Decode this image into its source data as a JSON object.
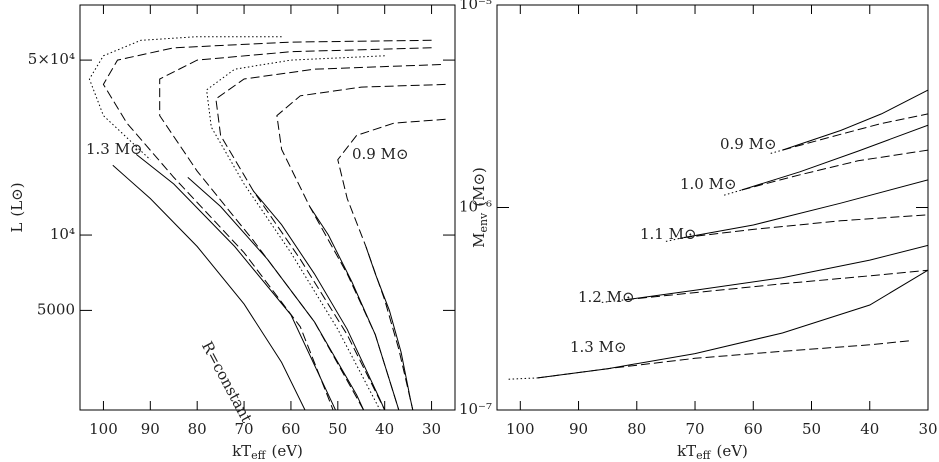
{
  "chart_data": [
    {
      "type": "line",
      "log_y": true,
      "xlim": [
        105,
        25
      ],
      "ylim": [
        2000,
        83000
      ],
      "xticks": [
        100,
        90,
        80,
        70,
        60,
        50,
        40,
        30
      ],
      "yticks": [
        {
          "value": 5000,
          "label": "5000"
        },
        {
          "value": 10000,
          "label": "10⁴"
        },
        {
          "value": 50000,
          "label": "5×10⁴"
        }
      ],
      "xlabel": {
        "text": "kT",
        "sub": "eff",
        "unit": "(eV)"
      },
      "ylabel": {
        "text": "L",
        "unit": "(L⊙)"
      },
      "annotations": [
        "1.3 M⊙",
        "0.9 M⊙",
        "R=constant"
      ],
      "series": [
        {
          "style": "dashed",
          "color": "#000",
          "x": [
            30,
            60,
            85,
            97,
            100,
            95,
            85,
            70,
            58,
            51
          ],
          "y": [
            60000,
            59000,
            56000,
            50000,
            40000,
            28000,
            17000,
            8500,
            4300,
            2000
          ]
        },
        {
          "style": "dotted",
          "color": "#000",
          "x": [
            62,
            80,
            92,
            100,
            103,
            100,
            90
          ],
          "y": [
            62000,
            62000,
            60000,
            52000,
            42000,
            30000,
            20000
          ]
        },
        {
          "style": "dashed",
          "color": "#000",
          "x": [
            30,
            60,
            80,
            88,
            88,
            80,
            68,
            55,
            44.5
          ],
          "y": [
            56000,
            54000,
            50000,
            42000,
            30000,
            18000,
            9500,
            4500,
            2000
          ]
        },
        {
          "style": "dashed",
          "color": "#000",
          "x": [
            28,
            55,
            70,
            76,
            75,
            68,
            58,
            48,
            40
          ],
          "y": [
            48000,
            46000,
            42000,
            35000,
            25000,
            15000,
            8000,
            4000,
            2000
          ]
        },
        {
          "style": "dotted",
          "color": "#000",
          "x": [
            40,
            60,
            72,
            78,
            77,
            70,
            60,
            50,
            41
          ],
          "y": [
            52000,
            50000,
            46000,
            38000,
            27000,
            16000,
            8500,
            4200,
            2000
          ]
        },
        {
          "style": "dashed",
          "color": "#000",
          "x": [
            27,
            45,
            58,
            63,
            62,
            56,
            48,
            42,
            37
          ],
          "y": [
            40000,
            39000,
            36000,
            30000,
            22000,
            13000,
            7000,
            4000,
            2000
          ]
        },
        {
          "style": "dashed",
          "color": "#000",
          "x": [
            27,
            38,
            46,
            50,
            48,
            44,
            40,
            37,
            34
          ],
          "y": [
            29000,
            28000,
            25000,
            20000,
            14000,
            9000,
            5500,
            3500,
            2000
          ]
        },
        {
          "style": "solid",
          "color": "#000",
          "x": [
            93,
            85,
            72,
            60,
            52,
            50.5
          ],
          "y": [
            21000,
            16000,
            9000,
            4800,
            2300,
            2000
          ]
        },
        {
          "style": "solid",
          "color": "#000",
          "x": [
            82,
            75,
            65,
            55,
            46,
            44.5
          ],
          "y": [
            17000,
            13000,
            8000,
            4500,
            2300,
            2000
          ]
        },
        {
          "style": "solid",
          "color": "#000",
          "x": [
            68,
            62,
            55,
            48,
            41,
            40
          ],
          "y": [
            15000,
            11000,
            7000,
            4200,
            2200,
            2000
          ]
        },
        {
          "style": "solid",
          "color": "#000",
          "x": [
            56,
            52,
            47,
            42,
            38,
            37
          ],
          "y": [
            13000,
            10000,
            6500,
            4000,
            2300,
            2000
          ]
        },
        {
          "style": "solid",
          "color": "#000",
          "x": [
            44,
            42,
            39,
            36.5,
            34.5,
            34
          ],
          "y": [
            9000,
            7000,
            5000,
            3400,
            2200,
            2000
          ]
        },
        {
          "style": "solid",
          "color": "#000",
          "x": [
            98,
            90,
            80,
            70,
            62,
            57
          ],
          "y": [
            19000,
            14000,
            9000,
            5300,
            3100,
            2000
          ]
        }
      ]
    },
    {
      "type": "line",
      "log_y": true,
      "xlim": [
        104,
        30
      ],
      "ylim": [
        1e-07,
        1e-05
      ],
      "xticks": [
        100,
        90,
        80,
        70,
        60,
        50,
        40,
        30
      ],
      "yticks": [
        {
          "value": 1e-07,
          "label": "10⁻⁷"
        },
        {
          "value": 1e-06,
          "label": "10⁻⁶"
        },
        {
          "value": 1e-05,
          "label": "10⁻⁵"
        }
      ],
      "xlabel": {
        "text": "kT",
        "sub": "eff",
        "unit": "(eV)"
      },
      "ylabel": {
        "text": "M",
        "sub": "env",
        "unit": "(M⊙)"
      },
      "annotations": [
        "0.9 M⊙",
        "1.0 M⊙",
        "1.1 M⊙",
        "1.2 M⊙",
        "1.3 M⊙"
      ],
      "series": [
        {
          "style": "dotted",
          "color": "#000",
          "x": [
            57,
            55
          ],
          "y": [
            1.85e-06,
            1.92e-06
          ]
        },
        {
          "style": "solid",
          "color": "#000",
          "x": [
            55,
            45,
            38,
            30
          ],
          "y": [
            1.92e-06,
            2.4e-06,
            2.9e-06,
            3.8e-06
          ]
        },
        {
          "style": "dashed",
          "color": "#000",
          "x": [
            55,
            45,
            38,
            30
          ],
          "y": [
            1.92e-06,
            2.3e-06,
            2.6e-06,
            2.9e-06
          ]
        },
        {
          "style": "dotted",
          "color": "#000",
          "x": [
            65,
            62
          ],
          "y": [
            1.15e-06,
            1.22e-06
          ]
        },
        {
          "style": "solid",
          "color": "#000",
          "x": [
            62,
            52,
            42,
            30
          ],
          "y": [
            1.22e-06,
            1.5e-06,
            1.9e-06,
            2.55e-06
          ]
        },
        {
          "style": "dashed",
          "color": "#000",
          "x": [
            62,
            52,
            42,
            30
          ],
          "y": [
            1.22e-06,
            1.45e-06,
            1.7e-06,
            1.92e-06
          ]
        },
        {
          "style": "dotted",
          "color": "#000",
          "x": [
            75,
            72
          ],
          "y": [
            6.8e-07,
            7.1e-07
          ]
        },
        {
          "style": "solid",
          "color": "#000",
          "x": [
            72,
            60,
            45,
            30
          ],
          "y": [
            7.1e-07,
            8.2e-07,
            1.05e-06,
            1.37e-06
          ]
        },
        {
          "style": "dashed",
          "color": "#000",
          "x": [
            72,
            60,
            45,
            30
          ],
          "y": [
            7.1e-07,
            7.8e-07,
            8.6e-07,
            9.2e-07
          ]
        },
        {
          "style": "dotted",
          "color": "#000",
          "x": [
            86,
            82
          ],
          "y": [
            3.4e-07,
            3.5e-07
          ]
        },
        {
          "style": "solid",
          "color": "#000",
          "x": [
            82,
            70,
            55,
            40,
            30
          ],
          "y": [
            3.5e-07,
            3.9e-07,
            4.5e-07,
            5.5e-07,
            6.5e-07
          ]
        },
        {
          "style": "dashed",
          "color": "#000",
          "x": [
            82,
            70,
            55,
            40,
            30
          ],
          "y": [
            3.5e-07,
            3.8e-07,
            4.2e-07,
            4.6e-07,
            4.9e-07
          ]
        },
        {
          "style": "dotted",
          "color": "#000",
          "x": [
            102,
            97
          ],
          "y": [
            1.42e-07,
            1.44e-07
          ]
        },
        {
          "style": "solid",
          "color": "#000",
          "x": [
            97,
            85,
            70,
            55,
            40,
            30
          ],
          "y": [
            1.44e-07,
            1.6e-07,
            1.9e-07,
            2.4e-07,
            3.3e-07,
            4.9e-07
          ]
        },
        {
          "style": "dashed",
          "color": "#000",
          "x": [
            97,
            85,
            70,
            55,
            40,
            33
          ],
          "y": [
            1.44e-07,
            1.6e-07,
            1.8e-07,
            1.95e-07,
            2.1e-07,
            2.2e-07
          ]
        }
      ]
    }
  ]
}
